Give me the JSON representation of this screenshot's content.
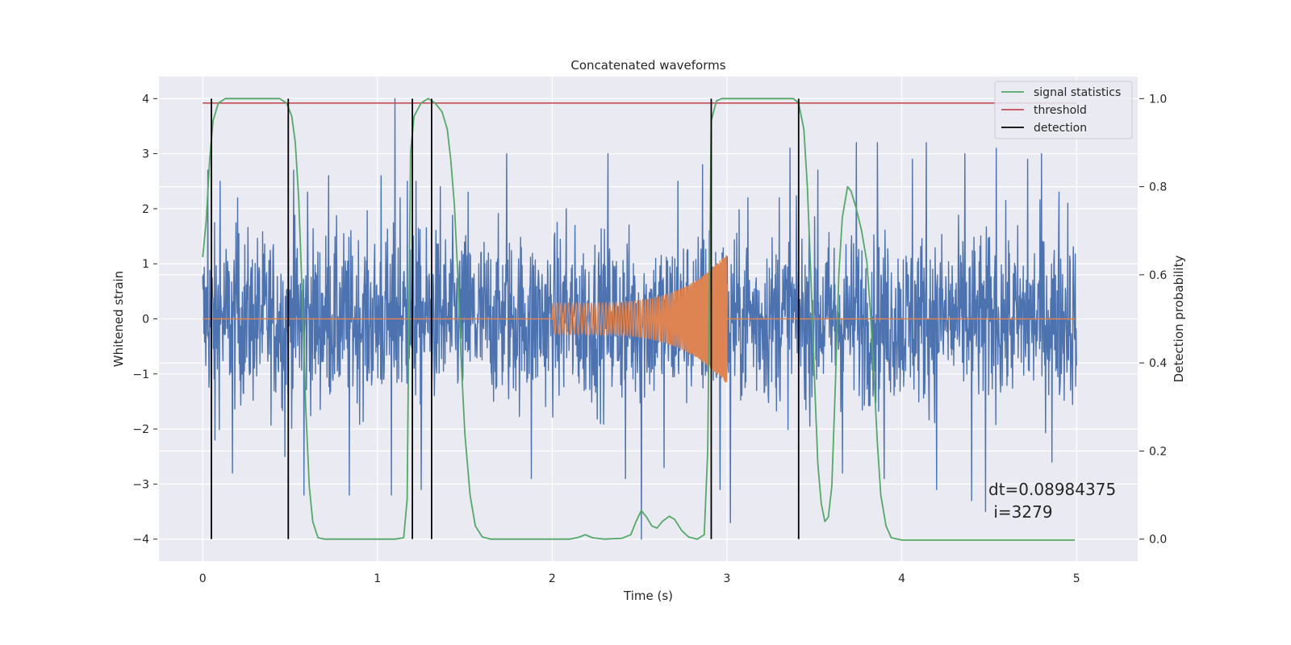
{
  "chart_data": {
    "type": "line",
    "title": "Concatenated waveforms",
    "xlabel": "Time (s)",
    "ylabel": "Whitened strain",
    "y2label": "Detection probability",
    "xlim": [
      -0.25,
      5.35
    ],
    "ylim": [
      -4.4,
      4.4
    ],
    "y2lim": [
      -0.05,
      1.05
    ],
    "xticks": [
      0,
      1,
      2,
      3,
      4,
      5
    ],
    "yticks": [
      -4,
      -3,
      -2,
      -1,
      0,
      1,
      2,
      3,
      4
    ],
    "y2ticks": [
      0.0,
      0.2,
      0.4,
      0.6,
      0.8,
      1.0
    ],
    "xtick_labels": [
      "0",
      "1",
      "2",
      "3",
      "4",
      "5"
    ],
    "ytick_labels": [
      "−4",
      "−3",
      "−2",
      "−1",
      "0",
      "1",
      "2",
      "3",
      "4"
    ],
    "y2tick_labels": [
      "0.0",
      "0.2",
      "0.4",
      "0.6",
      "0.8",
      "1.0"
    ],
    "grid": true,
    "legend_position": "top-right",
    "colors": {
      "background": "#eaeaf2",
      "grid": "#ffffff",
      "noise": "#4c72b0",
      "injection": "#dd8452",
      "statistics": "#55a868",
      "threshold": "#c44e52",
      "detection": "#000000"
    },
    "series": [
      {
        "name": "whitened strain",
        "axis": "left",
        "x_range": [
          0,
          5
        ],
        "amplitude": 0.8,
        "spikes": [
          {
            "x": 0.03,
            "y": 2.7
          },
          {
            "x": 0.07,
            "y": -2.2
          },
          {
            "x": 0.1,
            "y": 2.5
          },
          {
            "x": 0.17,
            "y": -2.8
          },
          {
            "x": 0.2,
            "y": 2.2
          },
          {
            "x": 0.47,
            "y": -2.5
          },
          {
            "x": 0.52,
            "y": 2.7
          },
          {
            "x": 0.58,
            "y": -3.2
          },
          {
            "x": 0.6,
            "y": 2.3
          },
          {
            "x": 0.72,
            "y": 2.6
          },
          {
            "x": 0.84,
            "y": -3.2
          },
          {
            "x": 1.02,
            "y": 2.6
          },
          {
            "x": 1.08,
            "y": -3.2
          },
          {
            "x": 1.1,
            "y": 4.0
          },
          {
            "x": 1.13,
            "y": 2.2
          },
          {
            "x": 1.17,
            "y": 2.5
          },
          {
            "x": 1.22,
            "y": 2.5
          },
          {
            "x": 1.25,
            "y": -3.1
          },
          {
            "x": 1.36,
            "y": 2.4
          },
          {
            "x": 1.52,
            "y": 2.3
          },
          {
            "x": 1.74,
            "y": 3.0
          },
          {
            "x": 1.88,
            "y": -2.9
          },
          {
            "x": 2.08,
            "y": 2.0
          },
          {
            "x": 2.32,
            "y": 3.0
          },
          {
            "x": 2.42,
            "y": -2.9
          },
          {
            "x": 2.51,
            "y": -4.0
          },
          {
            "x": 2.64,
            "y": -2.7
          },
          {
            "x": 2.72,
            "y": 2.5
          },
          {
            "x": 2.86,
            "y": 2.8
          },
          {
            "x": 2.9,
            "y": 1.6
          },
          {
            "x": 2.96,
            "y": -3.1
          },
          {
            "x": 3.02,
            "y": -3.7
          },
          {
            "x": 3.12,
            "y": 2.2
          },
          {
            "x": 3.3,
            "y": 2.2
          },
          {
            "x": 3.36,
            "y": 3.1
          },
          {
            "x": 3.52,
            "y": 2.7
          },
          {
            "x": 3.66,
            "y": -2.8
          },
          {
            "x": 3.74,
            "y": 3.2
          },
          {
            "x": 3.86,
            "y": 3.2
          },
          {
            "x": 3.9,
            "y": -2.9
          },
          {
            "x": 4.06,
            "y": 2.9
          },
          {
            "x": 4.14,
            "y": 3.2
          },
          {
            "x": 4.2,
            "y": -3.1
          },
          {
            "x": 4.36,
            "y": 3.0
          },
          {
            "x": 4.4,
            "y": -3.3
          },
          {
            "x": 4.48,
            "y": -3.5
          },
          {
            "x": 4.54,
            "y": 3.1
          },
          {
            "x": 4.72,
            "y": 2.9
          },
          {
            "x": 4.8,
            "y": 3.0
          },
          {
            "x": 4.86,
            "y": -2.6
          },
          {
            "x": 4.9,
            "y": 2.3
          },
          {
            "x": 4.95,
            "y": 2.1
          }
        ]
      },
      {
        "name": "injected waveform",
        "axis": "left",
        "x_range": [
          0,
          5
        ],
        "chirp_start": 2.0,
        "chirp_end": 3.0,
        "amplitude_start": 0.28,
        "amplitude_end": 1.2
      },
      {
        "name": "signal statistics",
        "axis": "right",
        "points": [
          [
            0.0,
            0.64
          ],
          [
            0.02,
            0.72
          ],
          [
            0.04,
            0.86
          ],
          [
            0.06,
            0.95
          ],
          [
            0.09,
            0.99
          ],
          [
            0.13,
            1.0
          ],
          [
            0.44,
            1.0
          ],
          [
            0.48,
            0.99
          ],
          [
            0.51,
            0.96
          ],
          [
            0.53,
            0.9
          ],
          [
            0.55,
            0.77
          ],
          [
            0.57,
            0.55
          ],
          [
            0.59,
            0.3
          ],
          [
            0.61,
            0.12
          ],
          [
            0.63,
            0.04
          ],
          [
            0.66,
            0.003
          ],
          [
            0.7,
            0.0
          ],
          [
            1.1,
            0.0
          ],
          [
            1.15,
            0.003
          ],
          [
            1.17,
            0.09
          ],
          [
            1.18,
            0.5
          ],
          [
            1.19,
            0.88
          ],
          [
            1.21,
            0.96
          ],
          [
            1.25,
            0.99
          ],
          [
            1.29,
            1.0
          ],
          [
            1.33,
            0.99
          ],
          [
            1.37,
            0.97
          ],
          [
            1.4,
            0.93
          ],
          [
            1.42,
            0.86
          ],
          [
            1.44,
            0.76
          ],
          [
            1.46,
            0.6
          ],
          [
            1.48,
            0.4
          ],
          [
            1.5,
            0.24
          ],
          [
            1.53,
            0.1
          ],
          [
            1.56,
            0.03
          ],
          [
            1.6,
            0.005
          ],
          [
            1.65,
            0.0
          ],
          [
            2.1,
            0.0
          ],
          [
            2.15,
            0.004
          ],
          [
            2.19,
            0.01
          ],
          [
            2.23,
            0.003
          ],
          [
            2.3,
            0.0
          ],
          [
            2.4,
            0.002
          ],
          [
            2.45,
            0.01
          ],
          [
            2.48,
            0.04
          ],
          [
            2.51,
            0.065
          ],
          [
            2.54,
            0.05
          ],
          [
            2.57,
            0.03
          ],
          [
            2.6,
            0.025
          ],
          [
            2.63,
            0.04
          ],
          [
            2.67,
            0.052
          ],
          [
            2.7,
            0.045
          ],
          [
            2.74,
            0.02
          ],
          [
            2.78,
            0.005
          ],
          [
            2.83,
            0.0
          ],
          [
            2.87,
            0.01
          ],
          [
            2.89,
            0.2
          ],
          [
            2.91,
            0.95
          ],
          [
            2.94,
            0.995
          ],
          [
            2.97,
            1.0
          ],
          [
            3.38,
            1.0
          ],
          [
            3.41,
            0.99
          ],
          [
            3.44,
            0.93
          ],
          [
            3.46,
            0.8
          ],
          [
            3.48,
            0.6
          ],
          [
            3.5,
            0.37
          ],
          [
            3.52,
            0.17
          ],
          [
            3.54,
            0.08
          ],
          [
            3.56,
            0.04
          ],
          [
            3.58,
            0.05
          ],
          [
            3.6,
            0.12
          ],
          [
            3.62,
            0.35
          ],
          [
            3.64,
            0.6
          ],
          [
            3.66,
            0.73
          ],
          [
            3.69,
            0.8
          ],
          [
            3.71,
            0.79
          ],
          [
            3.74,
            0.75
          ],
          [
            3.77,
            0.7
          ],
          [
            3.8,
            0.63
          ],
          [
            3.82,
            0.52
          ],
          [
            3.84,
            0.38
          ],
          [
            3.86,
            0.22
          ],
          [
            3.88,
            0.1
          ],
          [
            3.91,
            0.03
          ],
          [
            3.94,
            0.003
          ],
          [
            4.0,
            -0.002
          ],
          [
            4.99,
            -0.002
          ]
        ]
      },
      {
        "name": "threshold",
        "axis": "right",
        "x_range": [
          0,
          5
        ],
        "value": 0.99
      },
      {
        "name": "detection",
        "axis": "right",
        "x": [
          0.05,
          0.49,
          1.2,
          1.31,
          2.91,
          3.41
        ],
        "y_range": [
          0.0,
          1.0
        ]
      }
    ],
    "legend": [
      "signal statistics",
      "threshold",
      "detection"
    ],
    "annotation": {
      "line1": "dt=0.08984375",
      "line2": " i=3279"
    }
  }
}
